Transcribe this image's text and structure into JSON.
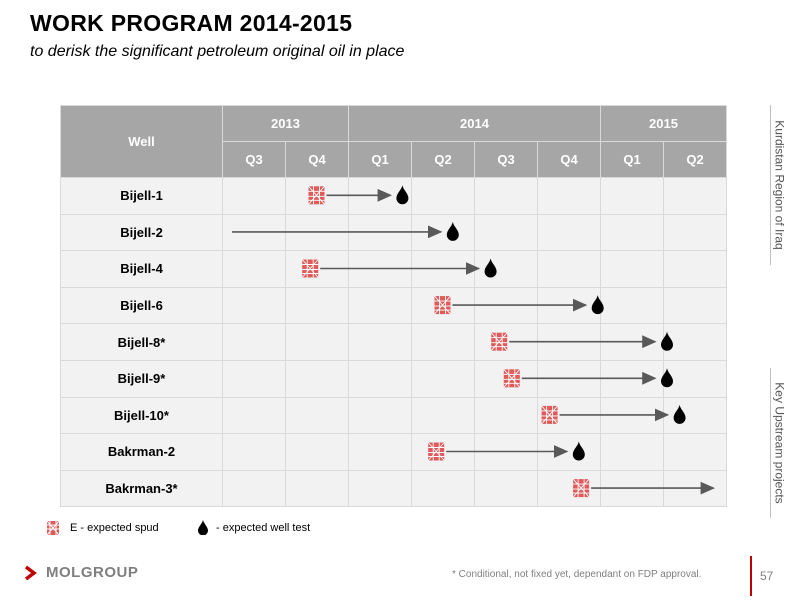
{
  "title": "WORK PROGRAM 2014-2015",
  "subtitle": "to derisk the significant petroleum original oil in place",
  "table": {
    "well_header": "Well",
    "years": [
      {
        "label": "2013",
        "span": 2
      },
      {
        "label": "2014",
        "span": 4
      },
      {
        "label": "2015",
        "span": 2
      }
    ],
    "quarters": [
      "Q3",
      "Q4",
      "Q1",
      "Q2",
      "Q3",
      "Q4",
      "Q1",
      "Q2"
    ],
    "wells": [
      {
        "name": "Bijell-1",
        "spud_quarter": 1.5,
        "test_quarter": 2.8
      },
      {
        "name": "Bijell-2",
        "spud_quarter": null,
        "test_quarter": 3.6
      },
      {
        "name": "Bijell-4",
        "spud_quarter": 1.4,
        "test_quarter": 4.2
      },
      {
        "name": "Bijell-6",
        "spud_quarter": 3.5,
        "test_quarter": 5.9
      },
      {
        "name": "Bijell-8*",
        "spud_quarter": 4.4,
        "test_quarter": 7.0
      },
      {
        "name": "Bijell-9*",
        "spud_quarter": 4.6,
        "test_quarter": 7.0
      },
      {
        "name": "Bijell-10*",
        "spud_quarter": 5.2,
        "test_quarter": 7.2
      },
      {
        "name": "Bakrman-2",
        "spud_quarter": 3.4,
        "test_quarter": 5.6
      },
      {
        "name": "Bakrman-3*",
        "spud_quarter": 5.7,
        "test_quarter": null
      }
    ]
  },
  "legend": {
    "spud_label": "E - expected spud",
    "test_label": "- expected well test"
  },
  "side_tabs": {
    "top": "Kurdistan Region of Iraq",
    "bottom": "Key Upstream projects"
  },
  "logo_text": "MOLGROUP",
  "footnote": "* Conditional, not fixed yet, dependant on FDP approval.",
  "page_number": "57",
  "colors": {
    "rig": "#e05a5a",
    "arrow": "#595959",
    "header_bg": "#a6a6a6",
    "cell_bg": "#f2f2f2",
    "accent": "#c00000"
  }
}
